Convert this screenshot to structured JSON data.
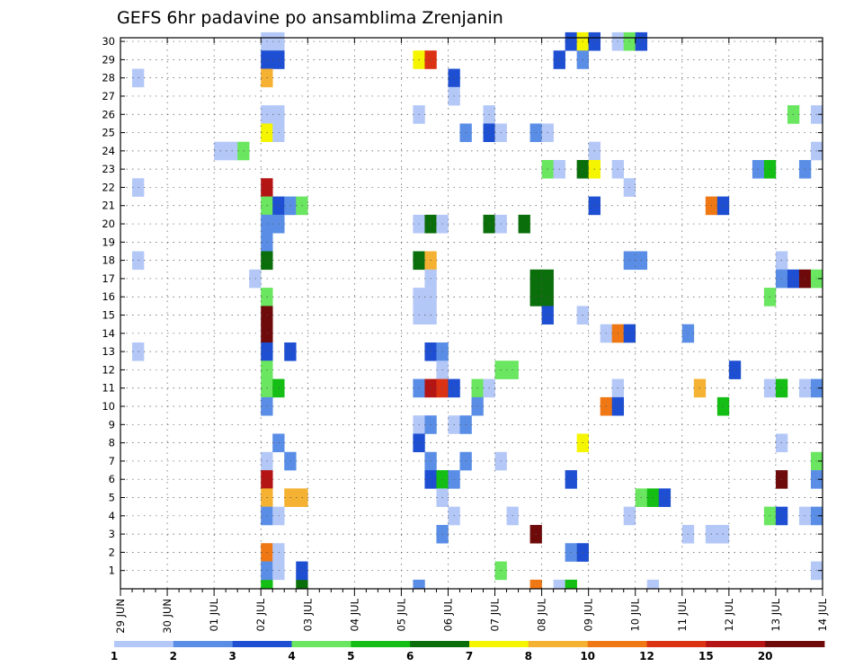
{
  "chart_data": {
    "type": "heatmap",
    "title": "GEFS 6hr padavine po ansamblima Zrenjanin",
    "xlabel": "",
    "ylabel": "",
    "x_tick_labels": [
      "29 JUN",
      "30 JUN",
      "01 JUL",
      "02 JUL",
      "03 JUL",
      "04 JUL",
      "05 JUL",
      "06 JUL",
      "07 JUL",
      "08 JUL",
      "09 JUL",
      "10 JUL",
      "11 JUL",
      "12 JUL",
      "13 JUL",
      "14 JUL"
    ],
    "y_tick_labels": [
      "1",
      "2",
      "3",
      "4",
      "5",
      "6",
      "7",
      "8",
      "9",
      "10",
      "11",
      "12",
      "13",
      "14",
      "15",
      "16",
      "17",
      "18",
      "19",
      "20",
      "21",
      "22",
      "23",
      "24",
      "25",
      "26",
      "27",
      "28",
      "29",
      "30"
    ],
    "steps_per_day": 4,
    "total_steps": 60,
    "grid": true,
    "legend": {
      "position": "bottom",
      "bounds": [
        "1",
        "2",
        "3",
        "4",
        "5",
        "6",
        "7",
        "8",
        "10",
        "12",
        "15",
        "20"
      ],
      "colors": [
        "#b4c8f8",
        "#5a8ee6",
        "#1e4fd2",
        "#6ae660",
        "#14be14",
        "#0a6e0a",
        "#f5f500",
        "#f5b232",
        "#f07814",
        "#dc3214",
        "#b41414",
        "#6e0a0a"
      ]
    },
    "cells": [
      {
        "m": 30,
        "t": 12,
        "c": 0
      },
      {
        "m": 30,
        "t": 13,
        "c": 0
      },
      {
        "m": 30,
        "t": 38,
        "c": 2
      },
      {
        "m": 30,
        "t": 39,
        "c": 6
      },
      {
        "m": 30,
        "t": 40,
        "c": 2
      },
      {
        "m": 30,
        "t": 42,
        "c": 0
      },
      {
        "m": 30,
        "t": 43,
        "c": 3
      },
      {
        "m": 30,
        "t": 44,
        "c": 2
      },
      {
        "m": 29,
        "t": 12,
        "c": 2
      },
      {
        "m": 29,
        "t": 13,
        "c": 2
      },
      {
        "m": 29,
        "t": 25,
        "c": 6
      },
      {
        "m": 29,
        "t": 26,
        "c": 9
      },
      {
        "m": 29,
        "t": 37,
        "c": 2
      },
      {
        "m": 29,
        "t": 39,
        "c": 1
      },
      {
        "m": 28,
        "t": 1,
        "c": 0
      },
      {
        "m": 28,
        "t": 12,
        "c": 7
      },
      {
        "m": 28,
        "t": 28,
        "c": 2
      },
      {
        "m": 27,
        "t": 28,
        "c": 0
      },
      {
        "m": 26,
        "t": 12,
        "c": 0
      },
      {
        "m": 26,
        "t": 13,
        "c": 0
      },
      {
        "m": 26,
        "t": 25,
        "c": 0
      },
      {
        "m": 26,
        "t": 31,
        "c": 0
      },
      {
        "m": 26,
        "t": 57,
        "c": 3
      },
      {
        "m": 26,
        "t": 59,
        "c": 0
      },
      {
        "m": 25,
        "t": 12,
        "c": 6
      },
      {
        "m": 25,
        "t": 13,
        "c": 0
      },
      {
        "m": 25,
        "t": 29,
        "c": 1
      },
      {
        "m": 25,
        "t": 31,
        "c": 2
      },
      {
        "m": 25,
        "t": 32,
        "c": 0
      },
      {
        "m": 25,
        "t": 35,
        "c": 1
      },
      {
        "m": 25,
        "t": 36,
        "c": 0
      },
      {
        "m": 24,
        "t": 8,
        "c": 0
      },
      {
        "m": 24,
        "t": 9,
        "c": 0
      },
      {
        "m": 24,
        "t": 10,
        "c": 3
      },
      {
        "m": 24,
        "t": 40,
        "c": 0
      },
      {
        "m": 24,
        "t": 59,
        "c": 0
      },
      {
        "m": 23,
        "t": 36,
        "c": 3
      },
      {
        "m": 23,
        "t": 37,
        "c": 0
      },
      {
        "m": 23,
        "t": 39,
        "c": 5
      },
      {
        "m": 23,
        "t": 40,
        "c": 6
      },
      {
        "m": 23,
        "t": 42,
        "c": 0
      },
      {
        "m": 23,
        "t": 54,
        "c": 1
      },
      {
        "m": 23,
        "t": 55,
        "c": 4
      },
      {
        "m": 23,
        "t": 58,
        "c": 1
      },
      {
        "m": 22,
        "t": 1,
        "c": 0
      },
      {
        "m": 22,
        "t": 12,
        "c": 10
      },
      {
        "m": 22,
        "t": 43,
        "c": 0
      },
      {
        "m": 21,
        "t": 12,
        "c": 3
      },
      {
        "m": 21,
        "t": 13,
        "c": 2
      },
      {
        "m": 21,
        "t": 14,
        "c": 1
      },
      {
        "m": 21,
        "t": 15,
        "c": 3
      },
      {
        "m": 21,
        "t": 40,
        "c": 2
      },
      {
        "m": 21,
        "t": 50,
        "c": 8
      },
      {
        "m": 21,
        "t": 51,
        "c": 2
      },
      {
        "m": 20,
        "t": 12,
        "c": 1
      },
      {
        "m": 20,
        "t": 13,
        "c": 1
      },
      {
        "m": 20,
        "t": 25,
        "c": 0
      },
      {
        "m": 20,
        "t": 26,
        "c": 5
      },
      {
        "m": 20,
        "t": 27,
        "c": 0
      },
      {
        "m": 20,
        "t": 31,
        "c": 5
      },
      {
        "m": 20,
        "t": 32,
        "c": 0
      },
      {
        "m": 20,
        "t": 34,
        "c": 5
      },
      {
        "m": 19,
        "t": 12,
        "c": 1
      },
      {
        "m": 18,
        "t": 1,
        "c": 0
      },
      {
        "m": 18,
        "t": 12,
        "c": 5
      },
      {
        "m": 18,
        "t": 25,
        "c": 5
      },
      {
        "m": 18,
        "t": 26,
        "c": 7
      },
      {
        "m": 18,
        "t": 43,
        "c": 1
      },
      {
        "m": 18,
        "t": 44,
        "c": 1
      },
      {
        "m": 18,
        "t": 56,
        "c": 0
      },
      {
        "m": 17,
        "t": 11,
        "c": 0
      },
      {
        "m": 17,
        "t": 26,
        "c": 0
      },
      {
        "m": 17,
        "t": 35,
        "c": 5
      },
      {
        "m": 17,
        "t": 36,
        "c": 5
      },
      {
        "m": 17,
        "t": 56,
        "c": 1
      },
      {
        "m": 17,
        "t": 57,
        "c": 2
      },
      {
        "m": 17,
        "t": 58,
        "c": 11
      },
      {
        "m": 17,
        "t": 59,
        "c": 3
      },
      {
        "m": 16,
        "t": 12,
        "c": 3
      },
      {
        "m": 16,
        "t": 25,
        "c": 0
      },
      {
        "m": 16,
        "t": 26,
        "c": 0
      },
      {
        "m": 16,
        "t": 35,
        "c": 5
      },
      {
        "m": 16,
        "t": 36,
        "c": 5
      },
      {
        "m": 16,
        "t": 55,
        "c": 3
      },
      {
        "m": 15,
        "t": 12,
        "c": 11
      },
      {
        "m": 15,
        "t": 25,
        "c": 0
      },
      {
        "m": 15,
        "t": 26,
        "c": 0
      },
      {
        "m": 15,
        "t": 36,
        "c": 2
      },
      {
        "m": 15,
        "t": 39,
        "c": 0
      },
      {
        "m": 14,
        "t": 12,
        "c": 11
      },
      {
        "m": 14,
        "t": 41,
        "c": 0
      },
      {
        "m": 14,
        "t": 42,
        "c": 8
      },
      {
        "m": 14,
        "t": 43,
        "c": 2
      },
      {
        "m": 14,
        "t": 48,
        "c": 1
      },
      {
        "m": 13,
        "t": 1,
        "c": 0
      },
      {
        "m": 13,
        "t": 12,
        "c": 2
      },
      {
        "m": 13,
        "t": 14,
        "c": 2
      },
      {
        "m": 13,
        "t": 26,
        "c": 2
      },
      {
        "m": 13,
        "t": 27,
        "c": 1
      },
      {
        "m": 12,
        "t": 12,
        "c": 3
      },
      {
        "m": 12,
        "t": 27,
        "c": 0
      },
      {
        "m": 12,
        "t": 32,
        "c": 3
      },
      {
        "m": 12,
        "t": 33,
        "c": 3
      },
      {
        "m": 12,
        "t": 52,
        "c": 2
      },
      {
        "m": 11,
        "t": 12,
        "c": 3
      },
      {
        "m": 11,
        "t": 13,
        "c": 4
      },
      {
        "m": 11,
        "t": 25,
        "c": 1
      },
      {
        "m": 11,
        "t": 26,
        "c": 10
      },
      {
        "m": 11,
        "t": 27,
        "c": 9
      },
      {
        "m": 11,
        "t": 28,
        "c": 2
      },
      {
        "m": 11,
        "t": 30,
        "c": 3
      },
      {
        "m": 11,
        "t": 31,
        "c": 0
      },
      {
        "m": 11,
        "t": 42,
        "c": 0
      },
      {
        "m": 11,
        "t": 49,
        "c": 7
      },
      {
        "m": 11,
        "t": 55,
        "c": 0
      },
      {
        "m": 11,
        "t": 56,
        "c": 4
      },
      {
        "m": 11,
        "t": 58,
        "c": 0
      },
      {
        "m": 11,
        "t": 59,
        "c": 1
      },
      {
        "m": 10,
        "t": 12,
        "c": 1
      },
      {
        "m": 10,
        "t": 30,
        "c": 1
      },
      {
        "m": 10,
        "t": 41,
        "c": 8
      },
      {
        "m": 10,
        "t": 42,
        "c": 2
      },
      {
        "m": 10,
        "t": 51,
        "c": 4
      },
      {
        "m": 9,
        "t": 25,
        "c": 0
      },
      {
        "m": 9,
        "t": 26,
        "c": 1
      },
      {
        "m": 9,
        "t": 28,
        "c": 0
      },
      {
        "m": 9,
        "t": 29,
        "c": 1
      },
      {
        "m": 8,
        "t": 13,
        "c": 1
      },
      {
        "m": 8,
        "t": 25,
        "c": 2
      },
      {
        "m": 8,
        "t": 39,
        "c": 6
      },
      {
        "m": 8,
        "t": 56,
        "c": 0
      },
      {
        "m": 7,
        "t": 12,
        "c": 0
      },
      {
        "m": 7,
        "t": 14,
        "c": 1
      },
      {
        "m": 7,
        "t": 26,
        "c": 1
      },
      {
        "m": 7,
        "t": 29,
        "c": 1
      },
      {
        "m": 7,
        "t": 32,
        "c": 0
      },
      {
        "m": 7,
        "t": 59,
        "c": 3
      },
      {
        "m": 6,
        "t": 12,
        "c": 10
      },
      {
        "m": 6,
        "t": 26,
        "c": 2
      },
      {
        "m": 6,
        "t": 27,
        "c": 4
      },
      {
        "m": 6,
        "t": 28,
        "c": 1
      },
      {
        "m": 6,
        "t": 38,
        "c": 2
      },
      {
        "m": 6,
        "t": 56,
        "c": 11
      },
      {
        "m": 6,
        "t": 59,
        "c": 1
      },
      {
        "m": 5,
        "t": 12,
        "c": 7
      },
      {
        "m": 5,
        "t": 14,
        "c": 7
      },
      {
        "m": 5,
        "t": 15,
        "c": 7
      },
      {
        "m": 5,
        "t": 27,
        "c": 0
      },
      {
        "m": 5,
        "t": 44,
        "c": 3
      },
      {
        "m": 5,
        "t": 45,
        "c": 4
      },
      {
        "m": 5,
        "t": 46,
        "c": 2
      },
      {
        "m": 4,
        "t": 12,
        "c": 1
      },
      {
        "m": 4,
        "t": 13,
        "c": 0
      },
      {
        "m": 4,
        "t": 28,
        "c": 0
      },
      {
        "m": 4,
        "t": 33,
        "c": 0
      },
      {
        "m": 4,
        "t": 43,
        "c": 0
      },
      {
        "m": 4,
        "t": 55,
        "c": 3
      },
      {
        "m": 4,
        "t": 56,
        "c": 2
      },
      {
        "m": 4,
        "t": 58,
        "c": 0
      },
      {
        "m": 4,
        "t": 59,
        "c": 1
      },
      {
        "m": 3,
        "t": 27,
        "c": 1
      },
      {
        "m": 3,
        "t": 35,
        "c": 11
      },
      {
        "m": 3,
        "t": 48,
        "c": 0
      },
      {
        "m": 3,
        "t": 50,
        "c": 0
      },
      {
        "m": 3,
        "t": 51,
        "c": 0
      },
      {
        "m": 2,
        "t": 12,
        "c": 8
      },
      {
        "m": 2,
        "t": 13,
        "c": 0
      },
      {
        "m": 2,
        "t": 38,
        "c": 1
      },
      {
        "m": 2,
        "t": 39,
        "c": 2
      },
      {
        "m": 1,
        "t": 12,
        "c": 1
      },
      {
        "m": 1,
        "t": 13,
        "c": 0
      },
      {
        "m": 1,
        "t": 15,
        "c": 2
      },
      {
        "m": 1,
        "t": 32,
        "c": 3
      },
      {
        "m": 1,
        "t": 59,
        "c": 0
      }
    ],
    "bottom_strip": [
      {
        "t": 12,
        "c": 4
      },
      {
        "t": 15,
        "c": 5
      },
      {
        "t": 25,
        "c": 1
      },
      {
        "t": 35,
        "c": 8
      },
      {
        "t": 37,
        "c": 0
      },
      {
        "t": 38,
        "c": 4
      },
      {
        "t": 45,
        "c": 0
      }
    ]
  }
}
